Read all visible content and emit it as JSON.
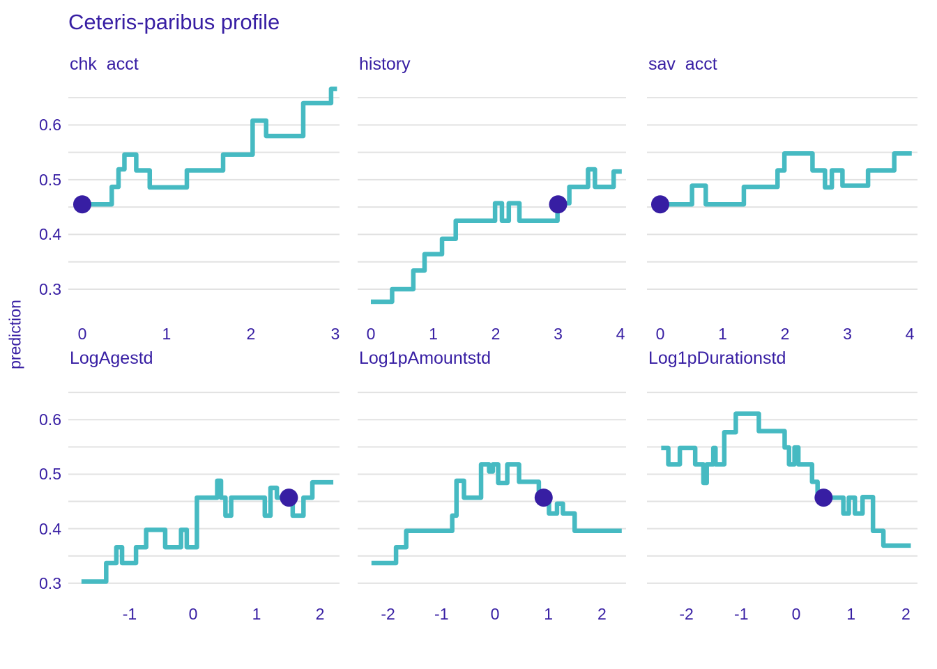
{
  "title": "Ceteris-paribus profile",
  "ylabel": "prediction",
  "colors": {
    "line": "#46bac2",
    "dot": "#371ea3",
    "text": "#371ea3",
    "grid": "#e2e2e2",
    "background": "#ffffff"
  },
  "chart_data": {
    "type": "line",
    "subtype": "step-profile",
    "title": "Ceteris-paribus profile",
    "ylabel": "prediction",
    "grid": "horizontal-only",
    "legend": "none",
    "y_ticks": [
      0.6,
      0.5,
      0.4,
      0.3
    ],
    "y_gridlines": [
      0.3,
      0.35,
      0.4,
      0.45,
      0.5,
      0.55,
      0.6,
      0.65
    ],
    "facets": [
      {
        "label": "chk  acct",
        "x_ticks": [
          0,
          1,
          2,
          3
        ],
        "xdomain": [
          -0.165,
          3.05
        ],
        "ydomain": [
          0.249,
          0.682
        ],
        "dot": {
          "x": 0.0,
          "y": 0.455
        },
        "steps": [
          [
            0.0,
            0.35,
            0.455
          ],
          [
            0.35,
            0.43,
            0.487
          ],
          [
            0.43,
            0.5,
            0.519
          ],
          [
            0.5,
            0.64,
            0.546
          ],
          [
            0.64,
            0.8,
            0.517
          ],
          [
            0.8,
            1.24,
            0.486
          ],
          [
            1.24,
            1.67,
            0.517
          ],
          [
            1.67,
            2.02,
            0.546
          ],
          [
            2.02,
            2.18,
            0.608
          ],
          [
            2.18,
            2.62,
            0.58
          ],
          [
            2.62,
            2.95,
            0.64
          ],
          [
            2.95,
            3.02,
            0.666
          ]
        ]
      },
      {
        "label": "history",
        "x_ticks": [
          0,
          1,
          2,
          3,
          4
        ],
        "xdomain": [
          -0.212,
          4.089
        ],
        "ydomain": [
          0.249,
          0.682
        ],
        "dot": {
          "x": 3.0,
          "y": 0.455
        },
        "steps": [
          [
            0.0,
            0.34,
            0.277
          ],
          [
            0.34,
            0.68,
            0.3
          ],
          [
            0.68,
            0.86,
            0.334
          ],
          [
            0.86,
            1.14,
            0.364
          ],
          [
            1.14,
            1.36,
            0.392
          ],
          [
            1.36,
            1.99,
            0.425
          ],
          [
            1.99,
            2.1,
            0.457
          ],
          [
            2.1,
            2.21,
            0.425
          ],
          [
            2.21,
            2.38,
            0.457
          ],
          [
            2.38,
            2.99,
            0.425
          ],
          [
            2.99,
            3.18,
            0.457
          ],
          [
            3.18,
            3.48,
            0.487
          ],
          [
            3.48,
            3.59,
            0.519
          ],
          [
            3.59,
            3.89,
            0.487
          ],
          [
            3.89,
            4.02,
            0.515
          ]
        ]
      },
      {
        "label": "sav  acct",
        "x_ticks": [
          0,
          1,
          2,
          3,
          4
        ],
        "xdomain": [
          -0.212,
          4.122
        ],
        "ydomain": [
          0.249,
          0.682
        ],
        "dot": {
          "x": 0.0,
          "y": 0.455
        },
        "steps": [
          [
            0.0,
            0.51,
            0.455
          ],
          [
            0.51,
            0.73,
            0.489
          ],
          [
            0.73,
            1.34,
            0.455
          ],
          [
            1.34,
            1.88,
            0.487
          ],
          [
            1.88,
            1.99,
            0.517
          ],
          [
            1.99,
            2.44,
            0.548
          ],
          [
            2.44,
            2.64,
            0.517
          ],
          [
            2.64,
            2.75,
            0.486
          ],
          [
            2.75,
            2.92,
            0.517
          ],
          [
            2.92,
            3.33,
            0.489
          ],
          [
            3.33,
            3.75,
            0.517
          ],
          [
            3.75,
            4.03,
            0.548
          ]
        ]
      },
      {
        "label": "LogAgestd",
        "x_ticks": [
          -1,
          0,
          1,
          2
        ],
        "xdomain": [
          -1.967,
          2.308
        ],
        "ydomain": [
          0.273,
          0.654
        ],
        "dot": {
          "x": 1.51,
          "y": 0.457
        },
        "steps": [
          [
            -1.76,
            -1.37,
            0.303
          ],
          [
            -1.37,
            -1.21,
            0.337
          ],
          [
            -1.21,
            -1.12,
            0.366
          ],
          [
            -1.12,
            -0.9,
            0.337
          ],
          [
            -0.9,
            -0.74,
            0.366
          ],
          [
            -0.74,
            -0.44,
            0.398
          ],
          [
            -0.44,
            -0.19,
            0.366
          ],
          [
            -0.19,
            -0.1,
            0.398
          ],
          [
            -0.1,
            0.06,
            0.366
          ],
          [
            0.06,
            0.38,
            0.457
          ],
          [
            0.38,
            0.44,
            0.488
          ],
          [
            0.44,
            0.51,
            0.457
          ],
          [
            0.51,
            0.6,
            0.424
          ],
          [
            0.6,
            1.13,
            0.457
          ],
          [
            1.13,
            1.22,
            0.424
          ],
          [
            1.22,
            1.32,
            0.475
          ],
          [
            1.32,
            1.57,
            0.457
          ],
          [
            1.57,
            1.74,
            0.424
          ],
          [
            1.74,
            1.88,
            0.457
          ],
          [
            1.88,
            2.21,
            0.485
          ]
        ]
      },
      {
        "label": "Log1pAmountstd",
        "x_ticks": [
          -2,
          -1,
          0,
          1,
          2
        ],
        "xdomain": [
          -2.568,
          2.451
        ],
        "ydomain": [
          0.273,
          0.654
        ],
        "dot": {
          "x": 0.91,
          "y": 0.457
        },
        "steps": [
          [
            -2.31,
            -1.85,
            0.337
          ],
          [
            -1.85,
            -1.66,
            0.366
          ],
          [
            -1.66,
            -0.8,
            0.396
          ],
          [
            -0.8,
            -0.72,
            0.424
          ],
          [
            -0.72,
            -0.58,
            0.488
          ],
          [
            -0.58,
            -0.26,
            0.457
          ],
          [
            -0.26,
            -0.11,
            0.518
          ],
          [
            -0.11,
            -0.04,
            0.505
          ],
          [
            -0.04,
            0.06,
            0.518
          ],
          [
            0.06,
            0.23,
            0.484
          ],
          [
            0.23,
            0.45,
            0.518
          ],
          [
            0.45,
            0.82,
            0.486
          ],
          [
            0.82,
            1.01,
            0.457
          ],
          [
            1.01,
            1.16,
            0.428
          ],
          [
            1.16,
            1.27,
            0.446
          ],
          [
            1.27,
            1.49,
            0.428
          ],
          [
            1.49,
            2.37,
            0.396
          ]
        ]
      },
      {
        "label": "Log1pDurationstd",
        "x_ticks": [
          -2,
          -1,
          0,
          1,
          2
        ],
        "xdomain": [
          -2.719,
          2.211
        ],
        "ydomain": [
          0.273,
          0.654
        ],
        "dot": {
          "x": 0.5,
          "y": 0.457
        },
        "steps": [
          [
            -2.46,
            -2.33,
            0.548
          ],
          [
            -2.33,
            -2.12,
            0.518
          ],
          [
            -2.12,
            -1.84,
            0.548
          ],
          [
            -1.84,
            -1.69,
            0.518
          ],
          [
            -1.69,
            -1.63,
            0.484
          ],
          [
            -1.63,
            -1.51,
            0.518
          ],
          [
            -1.51,
            -1.47,
            0.548
          ],
          [
            -1.47,
            -1.31,
            0.518
          ],
          [
            -1.31,
            -1.1,
            0.577
          ],
          [
            -1.1,
            -0.68,
            0.611
          ],
          [
            -0.68,
            -0.21,
            0.579
          ],
          [
            -0.21,
            -0.13,
            0.549
          ],
          [
            -0.13,
            -0.03,
            0.518
          ],
          [
            -0.03,
            0.04,
            0.549
          ],
          [
            0.04,
            0.29,
            0.518
          ],
          [
            0.29,
            0.39,
            0.486
          ],
          [
            0.39,
            0.86,
            0.457
          ],
          [
            0.86,
            0.96,
            0.428
          ],
          [
            0.96,
            1.07,
            0.457
          ],
          [
            1.07,
            1.21,
            0.428
          ],
          [
            1.21,
            1.4,
            0.458
          ],
          [
            1.4,
            1.59,
            0.396
          ],
          [
            1.59,
            2.09,
            0.369
          ]
        ]
      }
    ]
  }
}
